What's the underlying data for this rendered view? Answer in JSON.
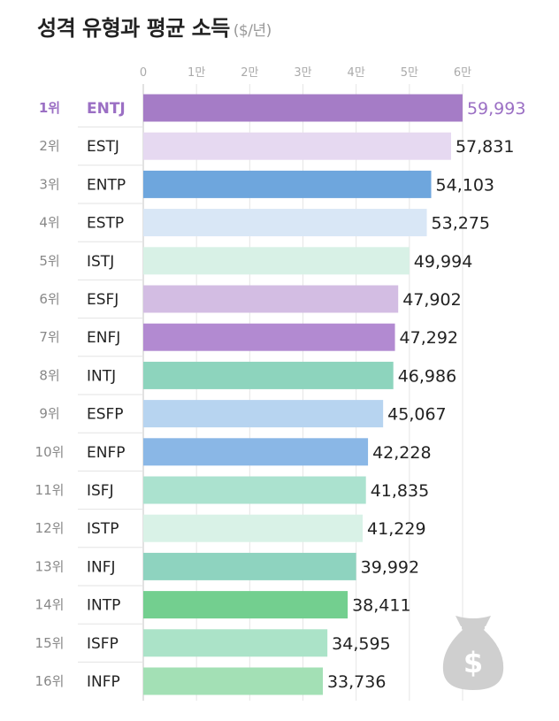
{
  "title": "성격 유형과 평균 소득",
  "unit": "($/년)",
  "chart_data": {
    "type": "bar",
    "orientation": "horizontal",
    "title": "성격 유형과 평균 소득",
    "unit": "($/년)",
    "xlim": [
      0,
      60000
    ],
    "ticks": [
      {
        "value": 0,
        "label": "0"
      },
      {
        "value": 10000,
        "label": "1만"
      },
      {
        "value": 20000,
        "label": "2만"
      },
      {
        "value": 30000,
        "label": "3만"
      },
      {
        "value": 40000,
        "label": "4만"
      },
      {
        "value": 50000,
        "label": "5만"
      },
      {
        "value": 60000,
        "label": "6만"
      }
    ],
    "bars": [
      {
        "rank": "1위",
        "category": "ENTJ",
        "value": 59993,
        "label": "59,993",
        "color": "#a57cc6"
      },
      {
        "rank": "2위",
        "category": "ESTJ",
        "value": 57831,
        "label": "57,831",
        "color": "#e6d9f1"
      },
      {
        "rank": "3위",
        "category": "ENTP",
        "value": 54103,
        "label": "54,103",
        "color": "#6ea6dd"
      },
      {
        "rank": "4위",
        "category": "ESTP",
        "value": 53275,
        "label": "53,275",
        "color": "#d9e7f6"
      },
      {
        "rank": "5위",
        "category": "ISTJ",
        "value": 49994,
        "label": "49,994",
        "color": "#d8f1e6"
      },
      {
        "rank": "6위",
        "category": "ESFJ",
        "value": 47902,
        "label": "47,902",
        "color": "#d3bde3"
      },
      {
        "rank": "7위",
        "category": "ENFJ",
        "value": 47292,
        "label": "47,292",
        "color": "#b28ad1"
      },
      {
        "rank": "8위",
        "category": "INTJ",
        "value": 46986,
        "label": "46,986",
        "color": "#8dd4bd"
      },
      {
        "rank": "9위",
        "category": "ESFP",
        "value": 45067,
        "label": "45,067",
        "color": "#b7d4f0"
      },
      {
        "rank": "10위",
        "category": "ENFP",
        "value": 42228,
        "label": "42,228",
        "color": "#8ab7e6"
      },
      {
        "rank": "11위",
        "category": "ISFJ",
        "value": 41835,
        "label": "41,835",
        "color": "#abe2cf"
      },
      {
        "rank": "12위",
        "category": "ISTP",
        "value": 41229,
        "label": "41,229",
        "color": "#d9f2e7"
      },
      {
        "rank": "13위",
        "category": "INFJ",
        "value": 39992,
        "label": "39,992",
        "color": "#8ed3bf"
      },
      {
        "rank": "14위",
        "category": "INTP",
        "value": 38411,
        "label": "38,411",
        "color": "#73cf8f"
      },
      {
        "rank": "15위",
        "category": "ISFP",
        "value": 34595,
        "label": "34,595",
        "color": "#abe3c8"
      },
      {
        "rank": "16위",
        "category": "INFP",
        "value": 33736,
        "label": "33,736",
        "color": "#a3e0b5"
      }
    ]
  },
  "colors": {
    "highlight": "#9b6fc4",
    "moneybag": "#cfcfcf"
  },
  "icons": {
    "moneybag": "money-bag-icon"
  }
}
